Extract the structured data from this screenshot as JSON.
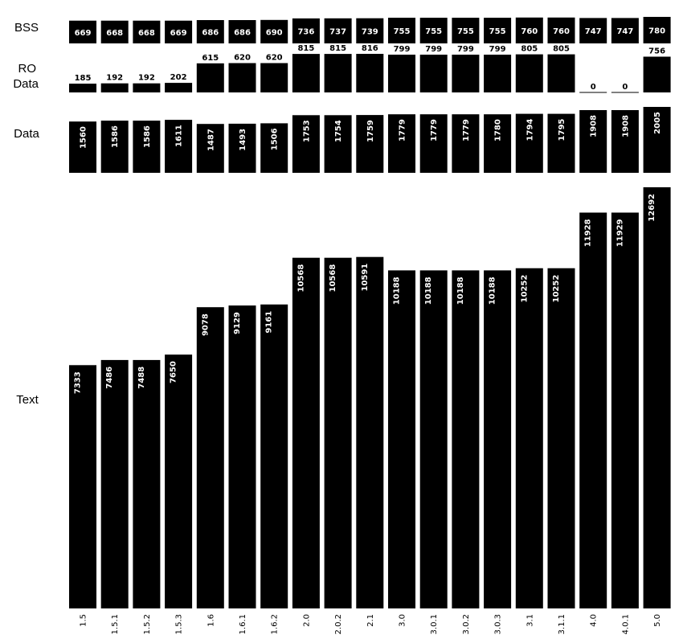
{
  "chart_data": {
    "type": "bar",
    "categories": [
      "1.5",
      "1.5.1",
      "1.5.2",
      "1.5.3",
      "1.6",
      "1.6.1",
      "1.6.2",
      "2.0",
      "2.0.2",
      "2.1",
      "3.0",
      "3.0.1",
      "3.0.2",
      "3.0.3",
      "3.1",
      "3.1.1",
      "4.0",
      "4.0.1",
      "5.0"
    ],
    "series": [
      {
        "name": "BSS",
        "values": [
          669,
          668,
          668,
          669,
          686,
          686,
          690,
          736,
          737,
          739,
          755,
          755,
          755,
          755,
          760,
          760,
          747,
          747,
          780
        ]
      },
      {
        "name": "RO Data",
        "values": [
          185,
          192,
          192,
          202,
          615,
          620,
          620,
          815,
          815,
          816,
          799,
          799,
          799,
          799,
          805,
          805,
          0,
          0,
          756
        ]
      },
      {
        "name": "Data",
        "values": [
          1560,
          1586,
          1586,
          1611,
          1487,
          1493,
          1506,
          1753,
          1754,
          1759,
          1779,
          1779,
          1779,
          1780,
          1794,
          1795,
          1908,
          1908,
          2005
        ]
      },
      {
        "name": "Text",
        "values": [
          7333,
          7486,
          7488,
          7650,
          9078,
          9129,
          9161,
          10568,
          10568,
          10591,
          10188,
          10188,
          10188,
          10188,
          10252,
          10252,
          11928,
          11929,
          12692
        ]
      }
    ],
    "colors": {
      "bar": "#000000",
      "label_inside": "#ffffff",
      "label_outside": "#000000",
      "background": "#ffffff"
    }
  }
}
